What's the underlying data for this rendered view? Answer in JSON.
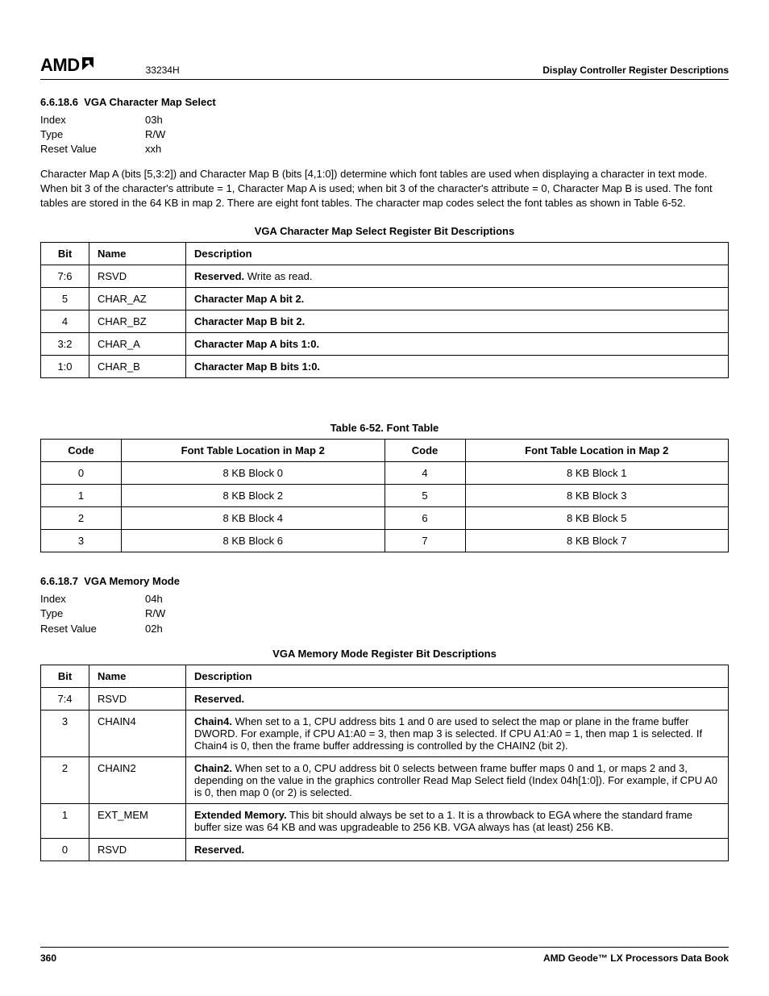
{
  "header": {
    "logo_text": "AMD",
    "doc_number": "33234H",
    "right_text": "Display Controller Register Descriptions"
  },
  "section1": {
    "number": "6.6.18.6",
    "title": "VGA Character Map Select",
    "fields": {
      "index_label": "Index",
      "index_value": "03h",
      "type_label": "Type",
      "type_value": "R/W",
      "reset_label": "Reset Value",
      "reset_value": "xxh"
    },
    "paragraph": "Character Map A (bits [5,3:2]) and Character Map B (bits [4,1:0]) determine which font tables are used when displaying a character in text mode. When bit 3 of the character's attribute = 1, Character Map A is used; when bit 3 of the character's attribute = 0, Character Map B is used. The font tables are stored in the 64 KB in map 2. There are eight font tables. The character map codes select the font tables as shown in Table 6-52."
  },
  "table1": {
    "title": "VGA Character Map Select Register Bit Descriptions",
    "headers": {
      "bit": "Bit",
      "name": "Name",
      "desc": "Description"
    },
    "rows": [
      {
        "bit": "7:6",
        "name": "RSVD",
        "desc_bold": "Reserved.",
        "desc_rest": " Write as read."
      },
      {
        "bit": "5",
        "name": "CHAR_AZ",
        "desc_bold": "Character Map A bit 2.",
        "desc_rest": ""
      },
      {
        "bit": "4",
        "name": "CHAR_BZ",
        "desc_bold": "Character Map B bit 2.",
        "desc_rest": ""
      },
      {
        "bit": "3:2",
        "name": "CHAR_A",
        "desc_bold": "Character Map A bits 1:0.",
        "desc_rest": ""
      },
      {
        "bit": "1:0",
        "name": "CHAR_B",
        "desc_bold": "Character Map B bits 1:0.",
        "desc_rest": ""
      }
    ]
  },
  "table2": {
    "title": "Table 6-52.  Font Table",
    "headers": {
      "code": "Code",
      "loc": "Font Table Location in Map 2"
    },
    "rows": [
      {
        "c1": "0",
        "l1": "8 KB Block 0",
        "c2": "4",
        "l2": "8 KB Block 1"
      },
      {
        "c1": "1",
        "l1": "8 KB Block 2",
        "c2": "5",
        "l2": "8 KB Block 3"
      },
      {
        "c1": "2",
        "l1": "8 KB Block 4",
        "c2": "6",
        "l2": "8 KB Block 5"
      },
      {
        "c1": "3",
        "l1": "8 KB Block 6",
        "c2": "7",
        "l2": "8 KB Block 7"
      }
    ]
  },
  "section2": {
    "number": "6.6.18.7",
    "title": "VGA Memory Mode",
    "fields": {
      "index_label": "Index",
      "index_value": "04h",
      "type_label": "Type",
      "type_value": "R/W",
      "reset_label": "Reset Value",
      "reset_value": "02h"
    }
  },
  "table3": {
    "title": "VGA Memory Mode Register Bit Descriptions",
    "headers": {
      "bit": "Bit",
      "name": "Name",
      "desc": "Description"
    },
    "rows": [
      {
        "bit": "7:4",
        "name": "RSVD",
        "desc_bold": "Reserved.",
        "desc_rest": ""
      },
      {
        "bit": "3",
        "name": "CHAIN4",
        "desc_bold": "Chain4.",
        "desc_rest": " When set to a 1, CPU address bits 1 and 0 are used to select the map or plane in the frame buffer DWORD. For example, if CPU A1:A0 = 3, then map 3 is selected. If CPU A1:A0 = 1, then map 1 is selected. If Chain4 is 0, then the frame buffer addressing is controlled by the CHAIN2 (bit 2)."
      },
      {
        "bit": "2",
        "name": "CHAIN2",
        "desc_bold": "Chain2.",
        "desc_rest": " When set to a 0, CPU address bit 0 selects between frame buffer maps 0 and 1, or maps 2 and 3, depending on the value in the graphics controller Read Map Select field (Index 04h[1:0]). For example, if CPU A0 is 0, then map 0 (or 2) is selected."
      },
      {
        "bit": "1",
        "name": "EXT_MEM",
        "desc_bold": "Extended Memory.",
        "desc_rest": " This bit should always be set to a 1. It is a throwback to EGA where the standard frame buffer size was 64 KB and was upgradeable to 256 KB. VGA always has (at least) 256 KB."
      },
      {
        "bit": "0",
        "name": "RSVD",
        "desc_bold": "Reserved.",
        "desc_rest": ""
      }
    ]
  },
  "footer": {
    "page": "360",
    "book": "AMD Geode™ LX Processors Data Book"
  }
}
